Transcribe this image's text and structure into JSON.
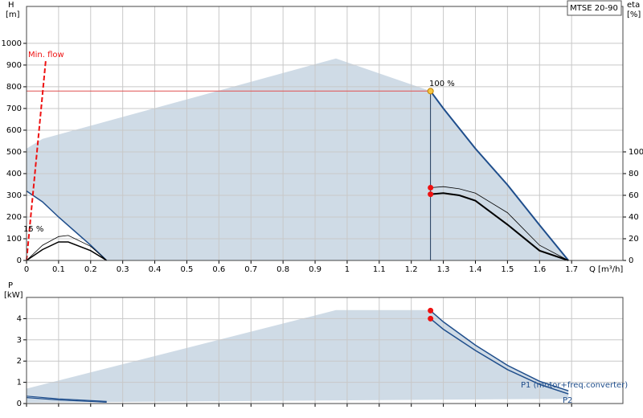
{
  "chart_data": [
    {
      "type": "line",
      "title": "MTSE 20-90",
      "xlabel": "Q [m³/h]",
      "ylabel_symbol": "H",
      "ylabel_unit": "[m]",
      "y2label_symbol": "eta",
      "y2label_unit": "[%]",
      "xlim": [
        0,
        1.86
      ],
      "ylim": [
        0,
        1170
      ],
      "y2lim": [
        0,
        234
      ],
      "xticks": [
        0,
        0.1,
        0.2,
        0.3,
        0.4,
        0.5,
        0.6,
        0.7,
        0.8,
        0.9,
        1,
        1.1,
        1.2,
        1.3,
        1.4,
        1.5,
        1.6,
        1.7
      ],
      "yticks": [
        0,
        100,
        200,
        300,
        400,
        500,
        600,
        700,
        800,
        900,
        1000
      ],
      "y2ticks": [
        0,
        20,
        40,
        60,
        80,
        100
      ],
      "show_xtick_labels": true,
      "grid": true,
      "series": [
        {
          "kind": "area",
          "color": "#cfdbe6",
          "x": [
            0,
            0,
            0.05,
            0.965,
            1.26,
            1.3,
            1.4,
            1.5,
            1.6,
            1.69,
            0.25,
            0.2,
            0.15,
            0.1,
            0.05
          ],
          "values": [
            320,
            515,
            560,
            930,
            780,
            700,
            515,
            348,
            163,
            0,
            0,
            70,
            135,
            200,
            270
          ]
        },
        {
          "kind": "line",
          "color": "#1f4e8c",
          "width": 2,
          "x": [
            1.26,
            1.3,
            1.4,
            1.5,
            1.6,
            1.69
          ],
          "values": [
            780,
            700,
            515,
            348,
            163,
            0
          ]
        },
        {
          "kind": "line",
          "color": "#1f4e8c",
          "width": 1.5,
          "label": "15 %",
          "x": [
            0,
            0.05,
            0.1,
            0.15,
            0.2,
            0.25
          ],
          "values": [
            320,
            270,
            200,
            135,
            70,
            0
          ]
        },
        {
          "kind": "line",
          "color": "#e05050",
          "width": 1,
          "x": [
            0,
            1.26
          ],
          "values": [
            780,
            780
          ]
        },
        {
          "kind": "line",
          "color": "#1e3a5c",
          "width": 1,
          "x": [
            1.26,
            1.26
          ],
          "values": [
            780,
            0
          ]
        },
        {
          "kind": "dashed",
          "color": "#ee1111",
          "width": 2,
          "label": "Min. flow",
          "x": [
            0,
            0.06
          ],
          "values": [
            0,
            920
          ]
        },
        {
          "kind": "line",
          "axis": "y2",
          "color": "#000000",
          "width": 0.8,
          "x": [
            1.26,
            1.3,
            1.35,
            1.4,
            1.5,
            1.6,
            1.69
          ],
          "values": [
            67,
            68,
            66,
            62,
            44,
            14,
            0
          ]
        },
        {
          "kind": "line",
          "axis": "y2",
          "color": "#000000",
          "width": 2,
          "x": [
            1.26,
            1.3,
            1.35,
            1.4,
            1.5,
            1.6,
            1.69
          ],
          "values": [
            61,
            62,
            60,
            55,
            33,
            9,
            0
          ]
        },
        {
          "kind": "line",
          "axis": "y2",
          "color": "#000000",
          "width": 0.8,
          "x": [
            0,
            0.05,
            0.1,
            0.13,
            0.2,
            0.25
          ],
          "values": [
            0,
            14,
            22,
            23,
            13,
            0
          ]
        },
        {
          "kind": "line",
          "axis": "y2",
          "color": "#000000",
          "width": 1.5,
          "x": [
            0,
            0.05,
            0.1,
            0.13,
            0.2,
            0.25
          ],
          "values": [
            0,
            10,
            17,
            17,
            9,
            0
          ]
        },
        {
          "kind": "points",
          "axis": "y2",
          "color": "#ee1111",
          "x": [
            1.26,
            1.26
          ],
          "values": [
            67,
            61
          ]
        },
        {
          "kind": "points",
          "color": "#f5c542",
          "label": "100 %",
          "x": [
            1.26
          ],
          "values": [
            780
          ]
        }
      ]
    },
    {
      "type": "line",
      "ylabel_symbol": "P",
      "ylabel_unit": "[kW]",
      "xlim": [
        0,
        1.86
      ],
      "ylim": [
        0,
        5
      ],
      "xticks": [
        0,
        0.1,
        0.2,
        0.3,
        0.4,
        0.5,
        0.6,
        0.7,
        0.8,
        0.9,
        1,
        1.1,
        1.2,
        1.3,
        1.4,
        1.5,
        1.6,
        1.7
      ],
      "yticks": [
        0,
        1,
        2,
        3,
        4
      ],
      "show_xtick_labels": false,
      "grid": true,
      "series": [
        {
          "kind": "area",
          "color": "#cfdbe6",
          "x": [
            0,
            0,
            0.965,
            1.26,
            1.3,
            1.4,
            1.5,
            1.6,
            1.69,
            1.69
          ],
          "values": [
            0.05,
            0.7,
            4.4,
            4.4,
            3.85,
            2.75,
            1.8,
            1.05,
            0.6,
            0.22
          ]
        },
        {
          "kind": "line",
          "color": "#1f4e8c",
          "width": 1.5,
          "name": "P1 (motor+freq.converter)",
          "x": [
            1.26,
            1.3,
            1.4,
            1.5,
            1.6,
            1.69
          ],
          "values": [
            4.38,
            3.85,
            2.75,
            1.8,
            1.05,
            0.6
          ]
        },
        {
          "kind": "line",
          "color": "#1f4e8c",
          "width": 1.5,
          "name": "P2",
          "x": [
            1.26,
            1.3,
            1.4,
            1.5,
            1.6,
            1.69
          ],
          "values": [
            4.0,
            3.5,
            2.5,
            1.6,
            0.9,
            0.45
          ]
        },
        {
          "kind": "line",
          "color": "#1f4e8c",
          "width": 1.2,
          "x": [
            0,
            0.1,
            0.25
          ],
          "values": [
            0.35,
            0.22,
            0.1
          ]
        },
        {
          "kind": "line",
          "color": "#1f4e8c",
          "width": 1.2,
          "x": [
            0,
            0.1,
            0.25
          ],
          "values": [
            0.28,
            0.17,
            0.06
          ]
        },
        {
          "kind": "points",
          "color": "#ee1111",
          "x": [
            1.26,
            1.26
          ],
          "values": [
            4.38,
            4.0
          ]
        }
      ]
    }
  ]
}
